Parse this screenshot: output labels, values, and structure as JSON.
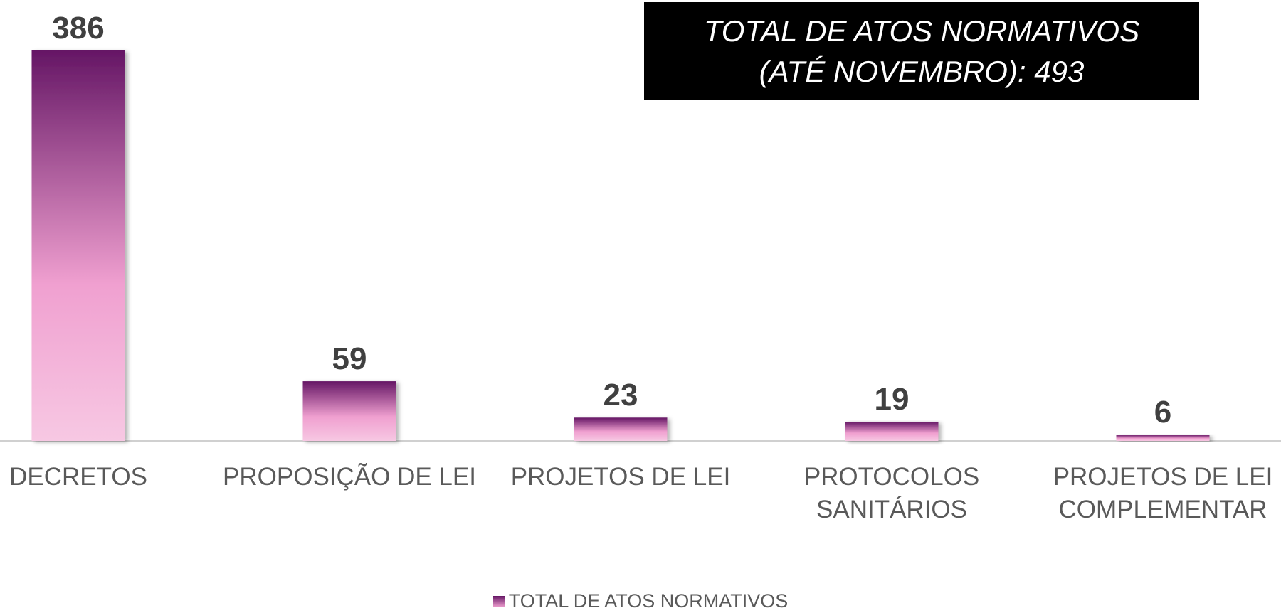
{
  "chart_data": {
    "type": "bar",
    "annotation": "TOTAL DE ATOS NORMATIVOS\n(ATÉ NOVEMBRO): 493",
    "categories": [
      "DECRETOS",
      "PROPOSIÇÃO DE LEI",
      "PROJETOS DE LEI",
      "PROTOCOLOS\nSANITÁRIOS",
      "PROJETOS DE LEI\nCOMPLEMENTAR"
    ],
    "series": [
      {
        "name": "TOTAL DE ATOS NORMATIVOS",
        "color": "#651665",
        "values": [
          386,
          59,
          23,
          19,
          6
        ]
      }
    ],
    "legend": "bottom"
  }
}
